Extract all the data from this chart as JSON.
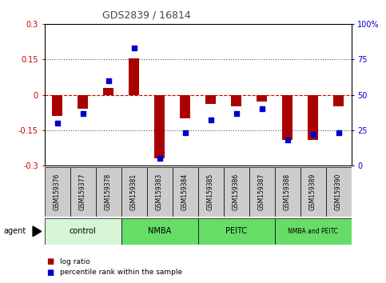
{
  "title": "GDS2839 / 16814",
  "samples": [
    "GSM159376",
    "GSM159377",
    "GSM159378",
    "GSM159381",
    "GSM159383",
    "GSM159384",
    "GSM159385",
    "GSM159386",
    "GSM159387",
    "GSM159388",
    "GSM159389",
    "GSM159390"
  ],
  "log_ratio": [
    -0.09,
    -0.06,
    0.03,
    0.153,
    -0.27,
    -0.1,
    -0.04,
    -0.05,
    -0.03,
    -0.19,
    -0.19,
    -0.05
  ],
  "percentile_rank": [
    30,
    37,
    60,
    83,
    5,
    23,
    32,
    37,
    40,
    18,
    22,
    23
  ],
  "groups": [
    {
      "label": "control",
      "start": 0,
      "end": 2,
      "color": "#d6f5d6"
    },
    {
      "label": "NMBA",
      "start": 3,
      "end": 5,
      "color": "#66dd66"
    },
    {
      "label": "PEITC",
      "start": 6,
      "end": 8,
      "color": "#66dd66"
    },
    {
      "label": "NMBA and PEITC",
      "start": 9,
      "end": 11,
      "color": "#66dd66"
    }
  ],
  "ylim": [
    -0.3,
    0.3
  ],
  "yticks_left": [
    -0.3,
    -0.15,
    0,
    0.15,
    0.3
  ],
  "yticks_right": [
    0,
    25,
    50,
    75,
    100
  ],
  "bar_color": "#aa0000",
  "dot_color": "#0000cc",
  "background_header": "#cccccc",
  "zero_line_color": "#cc0000",
  "dotted_line_color": "#555555",
  "title_color": "#444444",
  "left_axis_color": "#cc0000",
  "right_axis_color": "#0000cc",
  "group_font_sizes": {
    "control": 7,
    "NMBA": 7,
    "PEITC": 7,
    "NMBA and PEITC": 5.5
  }
}
